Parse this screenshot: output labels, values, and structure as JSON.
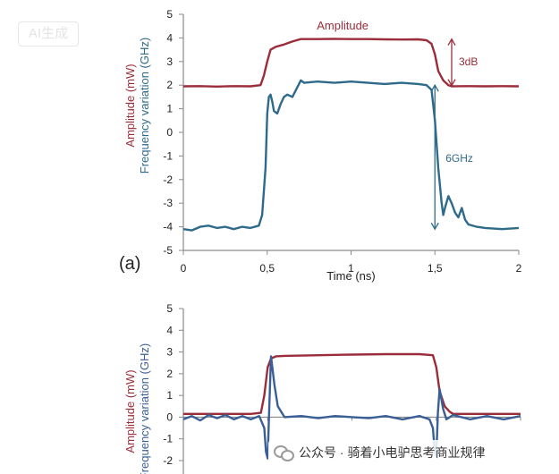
{
  "watermark": {
    "badge": "AI生成",
    "footer": "公众号 · 骑着小电驴思考商业规律"
  },
  "chart_data": [
    {
      "type": "line",
      "panel_label": "(a)",
      "xlabel": "Time (ns)",
      "ylabel_amplitude": "Amplitude (mW)",
      "ylabel_frequency": "Frequency variation (GHz)",
      "xlim": [
        0,
        2
      ],
      "ylim": [
        -5,
        5
      ],
      "x_ticks": [
        "0",
        "0,5",
        "1",
        "1,5",
        "2"
      ],
      "x_tick_values": [
        0,
        0.5,
        1,
        1.5,
        2
      ],
      "y_ticks": [
        -5,
        -4,
        -3,
        -2,
        -1,
        0,
        1,
        2,
        3,
        4,
        5
      ],
      "grid": false,
      "annotations": {
        "amplitude_label": "Amplitude",
        "amp_delta": "3dB",
        "freq_delta": "6GHz"
      },
      "series": [
        {
          "key": "amplitude",
          "color": "#9b2d3a",
          "x": [
            0,
            0.1,
            0.2,
            0.3,
            0.4,
            0.46,
            0.48,
            0.5,
            0.52,
            0.55,
            0.6,
            0.65,
            0.7,
            0.8,
            0.9,
            1.0,
            1.1,
            1.2,
            1.3,
            1.4,
            1.45,
            1.48,
            1.5,
            1.52,
            1.55,
            1.58,
            1.6,
            1.7,
            1.8,
            1.9,
            2.0
          ],
          "y": [
            1.95,
            1.96,
            1.94,
            1.96,
            1.95,
            2.0,
            2.4,
            3.0,
            3.5,
            3.62,
            3.72,
            3.85,
            3.95,
            3.95,
            3.96,
            3.95,
            3.95,
            3.94,
            3.93,
            3.94,
            3.9,
            3.75,
            3.3,
            2.6,
            2.2,
            2.0,
            1.95,
            1.96,
            1.95,
            1.96,
            1.95
          ]
        },
        {
          "key": "frequency",
          "color": "#2e6a8a",
          "x": [
            0,
            0.05,
            0.1,
            0.15,
            0.2,
            0.25,
            0.3,
            0.35,
            0.4,
            0.45,
            0.47,
            0.49,
            0.5,
            0.51,
            0.52,
            0.53,
            0.54,
            0.56,
            0.58,
            0.6,
            0.62,
            0.65,
            0.7,
            0.72,
            0.8,
            0.9,
            1.0,
            1.1,
            1.2,
            1.3,
            1.4,
            1.45,
            1.48,
            1.5,
            1.52,
            1.54,
            1.55,
            1.56,
            1.58,
            1.6,
            1.62,
            1.64,
            1.66,
            1.68,
            1.7,
            1.75,
            1.8,
            1.9,
            2.0
          ],
          "y": [
            -4.1,
            -4.15,
            -4.0,
            -3.95,
            -4.05,
            -4.0,
            -4.1,
            -4.0,
            -4.05,
            -3.95,
            -3.5,
            -1.5,
            0.8,
            1.5,
            1.6,
            1.3,
            0.9,
            0.8,
            1.2,
            1.5,
            1.6,
            1.5,
            2.2,
            2.1,
            2.15,
            2.1,
            2.15,
            2.1,
            2.05,
            2.1,
            2.05,
            2.0,
            1.8,
            0.5,
            -1.5,
            -3.0,
            -3.5,
            -3.2,
            -2.7,
            -3.0,
            -3.4,
            -3.6,
            -3.2,
            -3.7,
            -3.9,
            -4.0,
            -4.05,
            -4.1,
            -4.05
          ]
        }
      ]
    },
    {
      "type": "line",
      "ylabel_amplitude": "Amplitude (mW)",
      "ylabel_frequency": "Frequency variation (GHz)",
      "xlim": [
        0,
        2
      ],
      "ylim": [
        -2,
        5
      ],
      "y_ticks": [
        -2,
        -1,
        0,
        1,
        2,
        3,
        4,
        5
      ],
      "grid": false,
      "series": [
        {
          "key": "amplitude",
          "color": "#9b2d3a",
          "x": [
            0,
            0.2,
            0.4,
            0.46,
            0.48,
            0.5,
            0.52,
            0.55,
            0.6,
            0.8,
            1.0,
            1.2,
            1.4,
            1.48,
            1.5,
            1.52,
            1.55,
            1.58,
            1.6,
            1.8,
            2.0
          ],
          "y": [
            0.15,
            0.15,
            0.15,
            0.2,
            1.0,
            2.3,
            2.7,
            2.8,
            2.82,
            2.85,
            2.88,
            2.9,
            2.9,
            2.85,
            2.3,
            1.2,
            0.5,
            0.25,
            0.15,
            0.15,
            0.15
          ]
        },
        {
          "key": "frequency",
          "color": "#3a5f97",
          "x": [
            0,
            0.05,
            0.1,
            0.15,
            0.2,
            0.25,
            0.3,
            0.35,
            0.4,
            0.45,
            0.48,
            0.49,
            0.5,
            0.51,
            0.52,
            0.54,
            0.56,
            0.6,
            0.7,
            0.8,
            0.9,
            1.0,
            1.1,
            1.2,
            1.3,
            1.4,
            1.46,
            1.48,
            1.49,
            1.5,
            1.51,
            1.52,
            1.54,
            1.56,
            1.6,
            1.7,
            1.8,
            1.9,
            2.0
          ],
          "y": [
            -0.1,
            0.05,
            -0.15,
            0.1,
            -0.05,
            0.1,
            -0.1,
            0.05,
            -0.1,
            0.05,
            -0.5,
            -1.6,
            -1.9,
            0.5,
            2.8,
            1.5,
            0.5,
            0.0,
            0.05,
            -0.05,
            0.05,
            0.0,
            -0.05,
            0.05,
            -0.1,
            0.05,
            -0.1,
            -0.5,
            -1.5,
            -1.8,
            0.2,
            1.3,
            0.4,
            -0.1,
            0.1,
            -0.1,
            0.05,
            -0.1,
            0.05
          ]
        }
      ]
    }
  ]
}
